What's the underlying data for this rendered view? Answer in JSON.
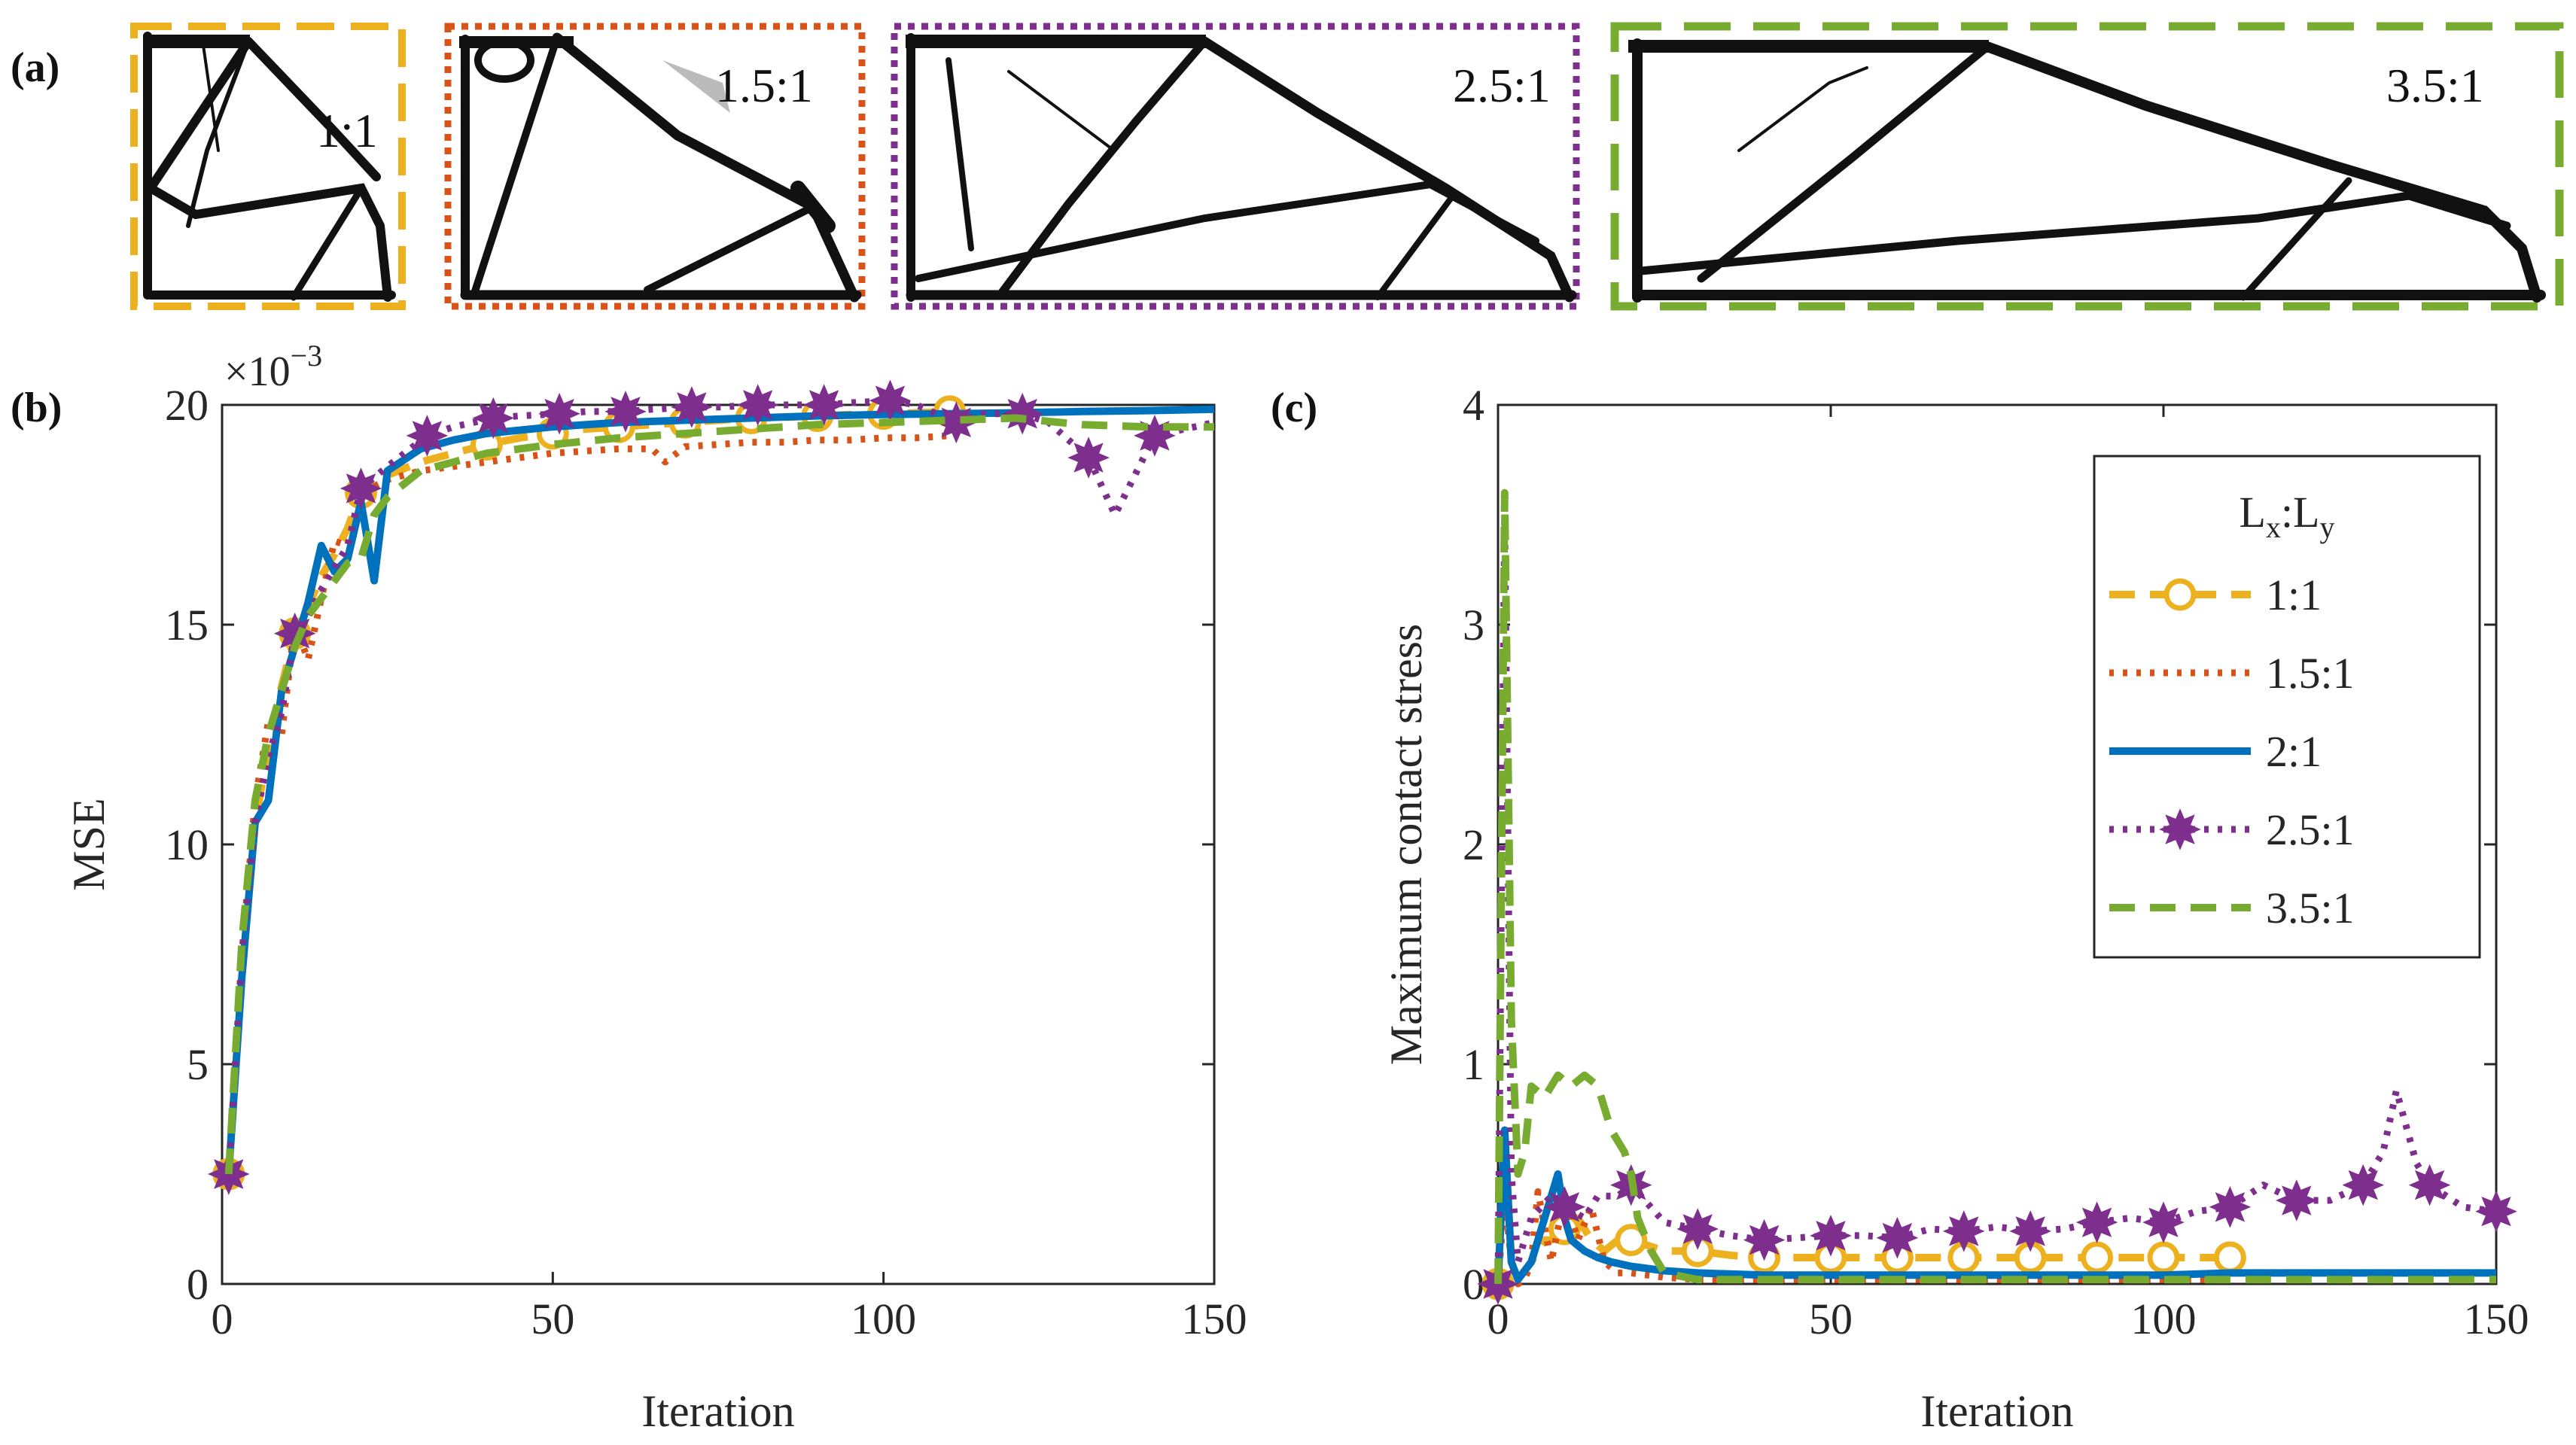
{
  "panels": {
    "a_label": "(a)",
    "b_label": "(b)",
    "c_label": "(c)"
  },
  "structures": [
    {
      "label": "1:1",
      "border_color": "#EDB120",
      "border_style": "dashed"
    },
    {
      "label": "1.5:1",
      "border_color": "#D95319",
      "border_style": "dotted"
    },
    {
      "label": "2.5:1",
      "border_color": "#7E2F8E",
      "border_style": "dotted"
    },
    {
      "label": "3.5:1",
      "border_color": "#77AC30",
      "border_style": "dashed"
    }
  ],
  "chart_data": [
    {
      "type": "line",
      "id": "b",
      "title": "",
      "xlabel": "Iteration",
      "ylabel": "MSE",
      "scale_label_base": "×10",
      "scale_label_exp": "−3",
      "xlim": [
        0,
        150
      ],
      "ylim": [
        0,
        20
      ],
      "xticks": [
        "0",
        "50",
        "100",
        "150"
      ],
      "yticks": [
        "0",
        "5",
        "10",
        "15",
        "20"
      ],
      "series": [
        {
          "name": "1:1",
          "color": "#EDB120",
          "dash": "dash",
          "marker": "circle",
          "marker_every": 10,
          "x": [
            1,
            3,
            5,
            7,
            9,
            11,
            13,
            15,
            17,
            19,
            21,
            25,
            30,
            35,
            40,
            45,
            50,
            55,
            60,
            65,
            70,
            75,
            80,
            85,
            90,
            95,
            100,
            105,
            110
          ],
          "y": [
            2.5,
            7,
            10.5,
            12.2,
            13.6,
            14.8,
            15.4,
            16.1,
            16.6,
            17.2,
            18.0,
            18.4,
            18.7,
            18.9,
            19.1,
            19.25,
            19.35,
            19.45,
            19.5,
            19.55,
            19.6,
            19.65,
            19.7,
            19.72,
            19.75,
            19.78,
            19.8,
            19.82,
            19.85
          ]
        },
        {
          "name": "1.5:1",
          "color": "#D95319",
          "dash": "dot",
          "marker": "none",
          "x": [
            1,
            3,
            5,
            7,
            9,
            11,
            13,
            15,
            17,
            19,
            21,
            25,
            30,
            35,
            40,
            45,
            50,
            55,
            60,
            65,
            67,
            70,
            75,
            80,
            85,
            90,
            95,
            100,
            105,
            110
          ],
          "y": [
            2.5,
            7.5,
            11,
            12.8,
            12.5,
            15,
            14.2,
            15.6,
            16.9,
            16.8,
            18.0,
            18.3,
            18.5,
            18.6,
            18.7,
            18.8,
            18.9,
            18.95,
            19.0,
            19.0,
            18.7,
            19.05,
            19.1,
            19.15,
            19.15,
            19.2,
            19.2,
            19.25,
            19.25,
            19.3
          ]
        },
        {
          "name": "2:1",
          "color": "#0072BD",
          "dash": "solid",
          "marker": "none",
          "x": [
            1,
            3,
            5,
            7,
            9,
            11,
            13,
            15,
            17,
            19,
            21,
            23,
            25,
            30,
            35,
            40,
            50,
            60,
            70,
            80,
            90,
            100,
            110,
            120,
            130,
            140,
            150
          ],
          "y": [
            2.5,
            7,
            10.5,
            11,
            13.5,
            14.5,
            15.5,
            16.8,
            16.2,
            16.5,
            17.8,
            16.0,
            18.5,
            19.0,
            19.2,
            19.35,
            19.5,
            19.6,
            19.65,
            19.7,
            19.75,
            19.78,
            19.8,
            19.82,
            19.85,
            19.87,
            19.9
          ]
        },
        {
          "name": "2.5:1",
          "color": "#7E2F8E",
          "dash": "dot",
          "marker": "star",
          "marker_every": 10,
          "x": [
            1,
            3,
            5,
            7,
            9,
            11,
            13,
            15,
            17,
            19,
            21,
            25,
            31,
            35,
            41,
            45,
            51,
            55,
            61,
            65,
            71,
            75,
            81,
            85,
            91,
            95,
            101,
            105,
            111,
            115,
            121,
            125,
            131,
            135,
            141,
            150
          ],
          "y": [
            2.5,
            7.5,
            10.5,
            12.0,
            13.0,
            14.8,
            15.2,
            15.8,
            16.3,
            16.8,
            18.1,
            18.6,
            19.3,
            19.5,
            19.7,
            19.75,
            19.8,
            19.85,
            19.85,
            19.9,
            19.95,
            19.95,
            20.0,
            20.0,
            20.0,
            20.05,
            20.1,
            20.0,
            19.6,
            19.8,
            19.8,
            19.6,
            18.8,
            17.5,
            19.3,
            19.6
          ]
        },
        {
          "name": "3.5:1",
          "color": "#77AC30",
          "dash": "dash",
          "marker": "none",
          "x": [
            1,
            3,
            5,
            7,
            9,
            11,
            13,
            15,
            17,
            19,
            21,
            23,
            25,
            30,
            35,
            40,
            50,
            60,
            70,
            80,
            90,
            100,
            110,
            120,
            130,
            140,
            150
          ],
          "y": [
            2.5,
            7.8,
            11,
            12.5,
            13.5,
            14.5,
            15.2,
            15.6,
            16.0,
            16.4,
            16.5,
            17.5,
            17.9,
            18.5,
            18.7,
            18.9,
            19.1,
            19.25,
            19.35,
            19.45,
            19.55,
            19.6,
            19.65,
            19.7,
            19.55,
            19.5,
            19.5
          ]
        }
      ]
    },
    {
      "type": "line",
      "id": "c",
      "title": "",
      "xlabel": "Iteration",
      "ylabel": "Maximum contact stress",
      "xlim": [
        0,
        150
      ],
      "ylim": [
        0,
        4
      ],
      "xticks": [
        "0",
        "50",
        "100",
        "150"
      ],
      "yticks": [
        "0",
        "1",
        "2",
        "3",
        "4"
      ],
      "legend": {
        "title_base": "L",
        "title_sub1": "x",
        "title_sep": ":L",
        "title_sub2": "y",
        "position": "top-right"
      },
      "series": [
        {
          "name": "1:1",
          "color": "#EDB120",
          "dash": "dash",
          "marker": "circle",
          "marker_every": 10,
          "x": [
            0,
            1,
            2,
            3,
            5,
            7,
            8,
            10,
            12,
            14,
            16,
            18,
            20,
            25,
            30,
            35,
            40,
            50,
            60,
            70,
            80,
            90,
            100,
            110
          ],
          "y": [
            0,
            0.65,
            0.1,
            0.02,
            0.1,
            0.2,
            0.2,
            0.25,
            0.3,
            0.2,
            0.15,
            0.2,
            0.2,
            0.15,
            0.15,
            0.13,
            0.12,
            0.12,
            0.12,
            0.12,
            0.12,
            0.12,
            0.12,
            0.12
          ]
        },
        {
          "name": "1.5:1",
          "color": "#D95319",
          "dash": "dot",
          "marker": "none",
          "x": [
            0,
            1,
            2,
            3,
            4,
            5,
            6,
            8,
            10,
            12,
            14,
            16,
            18,
            20,
            25,
            30,
            40,
            60,
            80,
            100,
            110
          ],
          "y": [
            0,
            0.4,
            0.1,
            0.0,
            0.02,
            0.1,
            0.42,
            0.1,
            0.4,
            0.2,
            0.35,
            0.1,
            0.05,
            0.05,
            0.03,
            0.02,
            0.02,
            0.02,
            0.02,
            0.02,
            0.02
          ]
        },
        {
          "name": "2:1",
          "color": "#0072BD",
          "dash": "solid",
          "marker": "none",
          "x": [
            0,
            1,
            2,
            3,
            5,
            7,
            9,
            10,
            11,
            13,
            15,
            17,
            20,
            25,
            30,
            40,
            50,
            60,
            70,
            80,
            90,
            100,
            110,
            120,
            130,
            140,
            150
          ],
          "y": [
            0,
            0.7,
            0.1,
            0.02,
            0.1,
            0.3,
            0.5,
            0.3,
            0.2,
            0.15,
            0.12,
            0.1,
            0.08,
            0.06,
            0.05,
            0.04,
            0.04,
            0.04,
            0.04,
            0.04,
            0.04,
            0.04,
            0.05,
            0.05,
            0.05,
            0.05,
            0.05
          ]
        },
        {
          "name": "2.5:1",
          "color": "#7E2F8E",
          "dash": "dot",
          "marker": "star",
          "marker_every": 10,
          "x": [
            0,
            1,
            2,
            3,
            5,
            8,
            10,
            13,
            15,
            18,
            20,
            25,
            30,
            35,
            40,
            45,
            50,
            55,
            60,
            65,
            70,
            75,
            80,
            85,
            90,
            95,
            100,
            105,
            110,
            115,
            120,
            125,
            130,
            133,
            135,
            138,
            140,
            145,
            150
          ],
          "y": [
            0,
            3.5,
            0.5,
            0.1,
            0.3,
            0.4,
            0.35,
            0.3,
            0.4,
            0.4,
            0.45,
            0.28,
            0.25,
            0.22,
            0.2,
            0.21,
            0.22,
            0.22,
            0.21,
            0.25,
            0.24,
            0.26,
            0.24,
            0.25,
            0.28,
            0.3,
            0.28,
            0.33,
            0.35,
            0.45,
            0.38,
            0.38,
            0.45,
            0.6,
            0.88,
            0.55,
            0.45,
            0.35,
            0.33
          ]
        },
        {
          "name": "3.5:1",
          "color": "#77AC30",
          "dash": "dash",
          "marker": "none",
          "x": [
            0,
            1,
            2,
            3,
            4,
            5,
            7,
            9,
            11,
            13,
            15,
            17,
            19,
            20,
            21,
            23,
            25,
            30,
            40,
            50,
            60,
            80,
            100,
            120,
            130,
            140,
            150
          ],
          "y": [
            0,
            3.6,
            1.2,
            0.5,
            0.6,
            0.9,
            0.85,
            0.95,
            0.9,
            0.95,
            0.9,
            0.7,
            0.6,
            0.5,
            0.3,
            0.15,
            0.05,
            0.02,
            0.02,
            0.02,
            0.02,
            0.02,
            0.02,
            0.02,
            0.02,
            0.02,
            0.02
          ]
        }
      ]
    }
  ]
}
